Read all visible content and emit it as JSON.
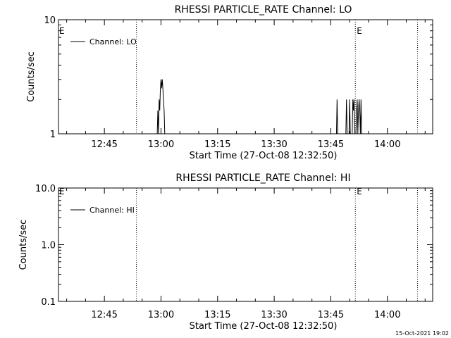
{
  "chart_data": [
    {
      "type": "line",
      "title": "RHESSI PARTICLE_RATE Channel: LO",
      "xlabel": "Start Time (27-Oct-08 12:32:50)",
      "ylabel": "Counts/sec",
      "yscale": "log",
      "ylim": [
        1,
        10
      ],
      "xlim": [
        "12:32:50",
        "14:12:00"
      ],
      "x_tick_labels": [
        "12:45",
        "13:00",
        "13:15",
        "13:30",
        "13:45",
        "14:00"
      ],
      "y_tick_labels": [
        "1",
        "10"
      ],
      "legend": {
        "label": "Channel: LO",
        "position": "top-left"
      },
      "event_markers": [
        {
          "time": "12:53:30",
          "label": ""
        },
        {
          "time": "13:51:30",
          "label": "E"
        },
        {
          "time": "14:08:00",
          "label": ""
        }
      ],
      "start_marker_label": "E",
      "series": [
        {
          "name": "Channel: LO",
          "points": [
            [
              "12:32:50",
              1
            ],
            [
              "12:59:00",
              1
            ],
            [
              "12:59:10",
              1.6
            ],
            [
              "12:59:20",
              1
            ],
            [
              "12:59:30",
              2
            ],
            [
              "12:59:40",
              1.6
            ],
            [
              "12:59:50",
              2.5
            ],
            [
              "13:00:00",
              3
            ],
            [
              "13:00:10",
              2.5
            ],
            [
              "13:00:20",
              3
            ],
            [
              "13:00:30",
              2.5
            ],
            [
              "13:00:40",
              2
            ],
            [
              "13:00:50",
              1.6
            ],
            [
              "13:01:00",
              1
            ],
            [
              "13:46:30",
              1
            ],
            [
              "13:46:40",
              2
            ],
            [
              "13:46:50",
              1
            ],
            [
              "13:49:00",
              1
            ],
            [
              "13:49:10",
              2
            ],
            [
              "13:49:20",
              1
            ],
            [
              "13:49:50",
              1
            ],
            [
              "13:50:00",
              2
            ],
            [
              "13:50:10",
              1
            ],
            [
              "13:50:40",
              1
            ],
            [
              "13:50:50",
              2
            ],
            [
              "13:51:00",
              1.6
            ],
            [
              "13:51:10",
              2
            ],
            [
              "13:51:20",
              1
            ],
            [
              "13:51:40",
              1
            ],
            [
              "13:51:50",
              1.6
            ],
            [
              "13:52:00",
              2
            ],
            [
              "13:52:10",
              1
            ],
            [
              "13:52:20",
              1.6
            ],
            [
              "13:52:30",
              2
            ],
            [
              "13:52:40",
              1.6
            ],
            [
              "13:52:50",
              1
            ],
            [
              "13:53:00",
              2
            ],
            [
              "13:53:10",
              1
            ],
            [
              "14:12:00",
              1
            ]
          ]
        }
      ]
    },
    {
      "type": "line",
      "title": "RHESSI PARTICLE_RATE Channel: HI",
      "xlabel": "Start Time (27-Oct-08 12:32:50)",
      "ylabel": "Counts/sec",
      "yscale": "log",
      "ylim": [
        0.1,
        10
      ],
      "xlim": [
        "12:32:50",
        "14:12:00"
      ],
      "x_tick_labels": [
        "12:45",
        "13:00",
        "13:15",
        "13:30",
        "13:45",
        "14:00"
      ],
      "y_tick_labels": [
        "0.1",
        "1.0",
        "10.0"
      ],
      "legend": {
        "label": "Channel: HI",
        "position": "top-left"
      },
      "event_markers": [
        {
          "time": "12:53:30",
          "label": ""
        },
        {
          "time": "13:51:30",
          "label": "E"
        },
        {
          "time": "14:08:00",
          "label": ""
        }
      ],
      "start_marker_label": "E",
      "series": [
        {
          "name": "Channel: HI",
          "points": []
        }
      ]
    }
  ],
  "footer": {
    "timestamp": "15-Oct-2021 19:02"
  }
}
